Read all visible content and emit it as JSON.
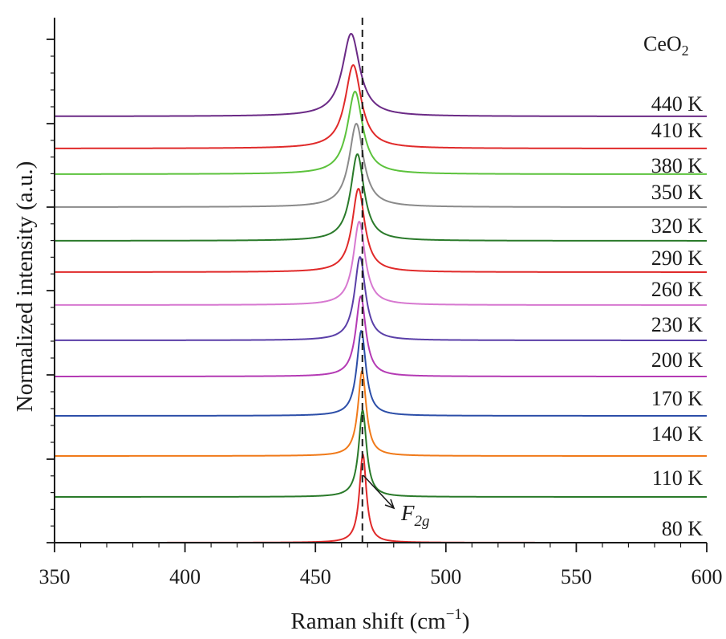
{
  "chart_data": {
    "type": "line",
    "title": "",
    "xlabel": "Raman shift (cm",
    "xlabel_sup": "−1",
    "xlabel_close": ")",
    "ylabel": "Normalized intensity (a.u.)",
    "xlim": [
      350,
      600
    ],
    "x_ticks": [
      350,
      400,
      450,
      500,
      550,
      600
    ],
    "x_minor_step": 10,
    "y_tick_labels_shown": false,
    "grid": false,
    "legend": "labels at right end of each curve",
    "sample_label": {
      "main": "CeO",
      "sub": "2"
    },
    "reference_line": {
      "x": 468,
      "style": "dashed"
    },
    "annotation": {
      "text_main": "F",
      "text_sub": "2g",
      "target_x": 468
    },
    "series": [
      {
        "name": "80 K",
        "peak_center": 468.2,
        "hwhm": 1.6,
        "color": "#e02a2a"
      },
      {
        "name": "110 K",
        "peak_center": 468.1,
        "hwhm": 1.8,
        "color": "#2a7a2a"
      },
      {
        "name": "140 K",
        "peak_center": 467.9,
        "hwhm": 1.9,
        "color": "#f07a1a"
      },
      {
        "name": "170 K",
        "peak_center": 467.6,
        "hwhm": 2.1,
        "color": "#2c4ea8"
      },
      {
        "name": "200 K",
        "peak_center": 467.4,
        "hwhm": 2.3,
        "color": "#b43ab4"
      },
      {
        "name": "230 K",
        "peak_center": 467.1,
        "hwhm": 2.5,
        "color": "#5a3fa8"
      },
      {
        "name": "260 K",
        "peak_center": 466.8,
        "hwhm": 2.7,
        "color": "#d778d0"
      },
      {
        "name": "290 K",
        "peak_center": 466.5,
        "hwhm": 2.9,
        "color": "#e02a2a"
      },
      {
        "name": "320 K",
        "peak_center": 466.1,
        "hwhm": 3.1,
        "color": "#2a7a2a"
      },
      {
        "name": "350 K",
        "peak_center": 465.7,
        "hwhm": 3.3,
        "color": "#8a8a8a"
      },
      {
        "name": "380 K",
        "peak_center": 465.2,
        "hwhm": 3.5,
        "color": "#5cc23c"
      },
      {
        "name": "410 K",
        "peak_center": 464.5,
        "hwhm": 3.7,
        "color": "#e02a2a"
      },
      {
        "name": "440 K",
        "peak_center": 463.7,
        "hwhm": 4.0,
        "color": "#6b2a86"
      }
    ]
  }
}
